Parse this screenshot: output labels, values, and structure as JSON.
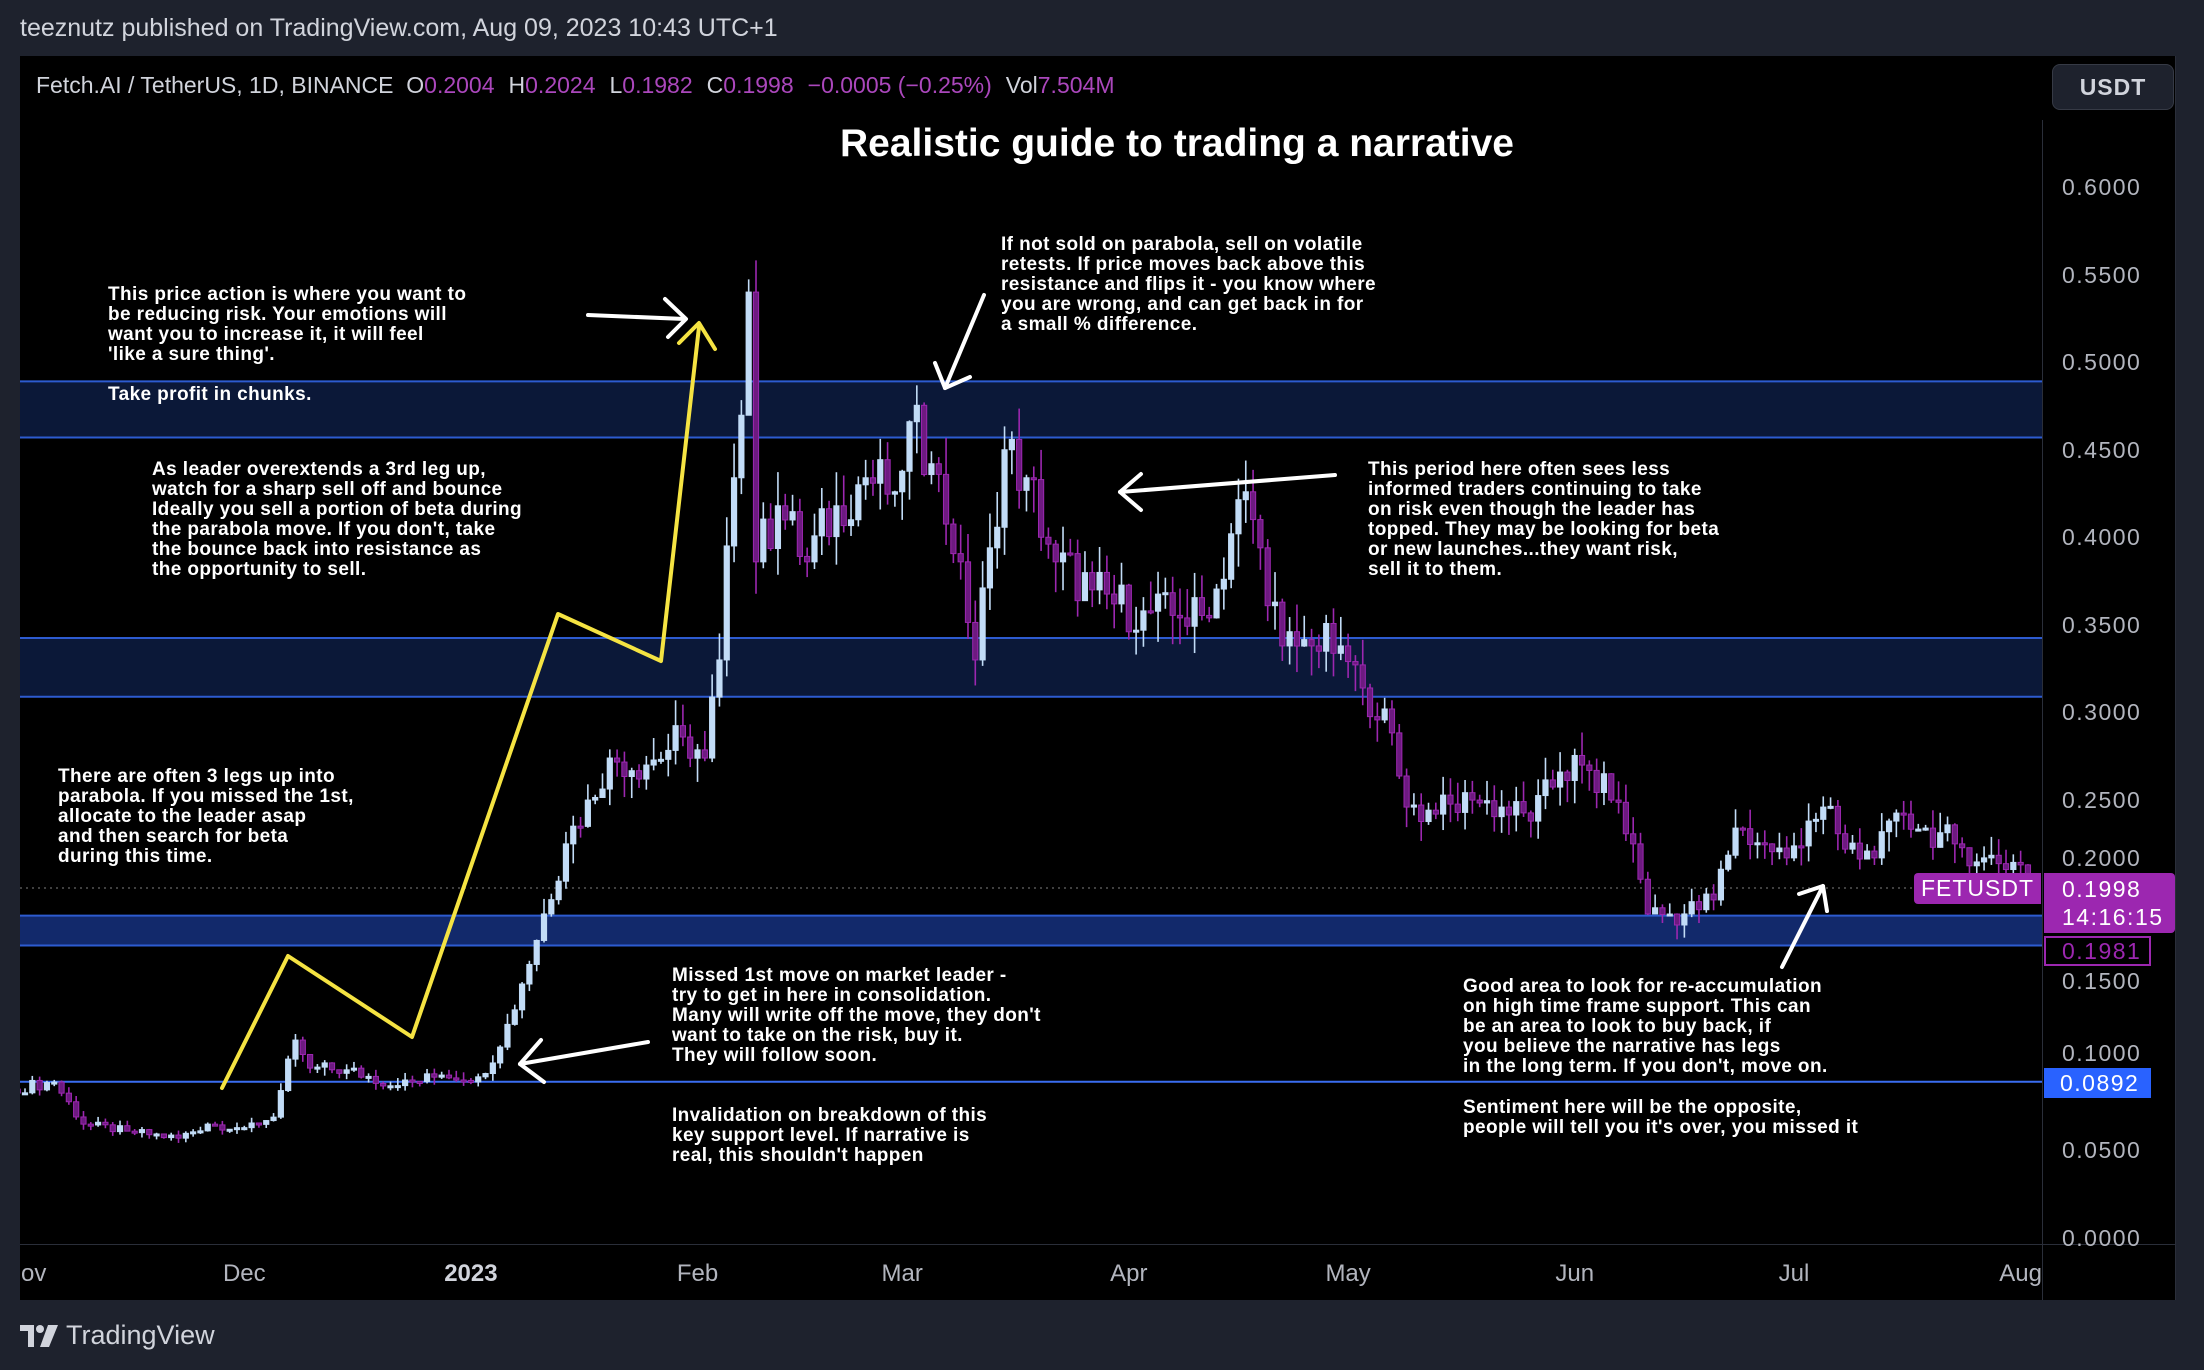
{
  "publish_line": "teeznutz published on TradingView.com, Aug 09, 2023 10:43 UTC+1",
  "legend": {
    "symbol": "Fetch.AI / TetherUS, 1D, BINANCE",
    "open_label": "O",
    "open": "0.2004",
    "high_label": "H",
    "high": "0.2024",
    "low_label": "L",
    "low": "0.1982",
    "close_label": "C",
    "close": "0.1998",
    "change": "−0.0005 (−0.25%)",
    "vol_label": "Vol",
    "vol": "7.504M"
  },
  "currency_button": "USDT",
  "title": "Realistic guide to trading a narrative",
  "annotations": {
    "reduce_risk": "This price action is where you want to\nbe reducing risk. Your emotions will\nwant you to increase it, it will feel\n'like a sure thing'.",
    "take_profit": "Take profit in chunks.",
    "overextends": "As leader overextends a 3rd leg up,\nwatch for a sharp sell off and bounce\nIdeally you sell a portion of beta during\nthe parabola move. If you don't, take\nthe bounce back into resistance as\nthe opportunity to sell.",
    "retests": "If not sold on parabola, sell on volatile\nretests. If price moves back above this\nresistance and flips it - you know where\nyou are wrong, and can get back in for\na small % difference.",
    "less_informed": "This period here often sees less\ninformed traders continuing to take\non risk even though the leader has\ntopped. They may be looking for beta\nor new launches...they want risk,\nsell it to them.",
    "three_legs": "There are often 3 legs up into\nparabola. If you missed the 1st,\nallocate to the leader asap\nand then search for beta\nduring this time.",
    "missed_first": "Missed 1st move on market leader -\ntry to get in here in consolidation.\nMany will write off the move, they don't\nwant to take on the risk, buy it.\nThey will follow soon.",
    "invalidation": "Invalidation on breakdown of this\nkey support level. If narrative is\nreal, this shouldn't happen",
    "reaccumulation": "Good area to look for re-accumulation\non high time frame support. This can\nbe an area to look to buy back, if\nyou believe the narrative has legs\nin the long term. If you don't, move on.",
    "sentiment": "Sentiment here will be the opposite,\npeople will tell you it's over, you missed it"
  },
  "price_markers": {
    "symbol_badge": "FETUSDT",
    "last_price": "0.1998",
    "countdown": "14:16:15",
    "low_marker": "0.1981",
    "support_marker": "0.0892"
  },
  "brand": "TradingView",
  "colors": {
    "up_candle": "#c2dcf7",
    "down_candle": "#9c27b0",
    "zone_fill": "#0b1838",
    "zone_border": "#2d5bd0",
    "support_line": "#3a6df0",
    "leg_path": "#f5e342",
    "arrow": "#ffffff",
    "accent_purple": "#9c27b0",
    "accent_blue": "#2962ff"
  },
  "chart_data": {
    "type": "candlestick",
    "interval": "1D",
    "ylim": [
      0,
      0.62
    ],
    "y_ticks": [
      "0.0000",
      "0.0500",
      "0.1000",
      "0.1500",
      "0.2000",
      "0.2500",
      "0.3000",
      "0.3500",
      "0.4000",
      "0.4500",
      "0.5000",
      "0.5500",
      "0.6000"
    ],
    "x_labels": [
      {
        "date": "2022-11-01",
        "label": "Nov",
        "bold": false
      },
      {
        "date": "2022-12-01",
        "label": "Dec",
        "bold": false
      },
      {
        "date": "2023-01-01",
        "label": "2023",
        "bold": true
      },
      {
        "date": "2023-02-01",
        "label": "Feb",
        "bold": false
      },
      {
        "date": "2023-03-01",
        "label": "Mar",
        "bold": false
      },
      {
        "date": "2023-04-01",
        "label": "Apr",
        "bold": false
      },
      {
        "date": "2023-05-01",
        "label": "May",
        "bold": false
      },
      {
        "date": "2023-06-01",
        "label": "Jun",
        "bold": false
      },
      {
        "date": "2023-07-01",
        "label": "Jul",
        "bold": false
      },
      {
        "date": "2023-08-01",
        "label": "Aug",
        "bold": false
      }
    ],
    "close_path": [
      [
        "2022-10-30",
        0.085
      ],
      [
        "2022-11-05",
        0.089
      ],
      [
        "2022-11-09",
        0.065
      ],
      [
        "2022-11-15",
        0.061
      ],
      [
        "2022-11-22",
        0.057
      ],
      [
        "2022-11-26",
        0.065
      ],
      [
        "2022-12-01",
        0.063
      ],
      [
        "2022-12-05",
        0.069
      ],
      [
        "2022-12-08",
        0.113
      ],
      [
        "2022-12-10",
        0.097
      ],
      [
        "2022-12-15",
        0.096
      ],
      [
        "2022-12-22",
        0.087
      ],
      [
        "2022-12-28",
        0.093
      ],
      [
        "2023-01-02",
        0.092
      ],
      [
        "2023-01-05",
        0.109
      ],
      [
        "2023-01-08",
        0.145
      ],
      [
        "2023-01-11",
        0.185
      ],
      [
        "2023-01-14",
        0.225
      ],
      [
        "2023-01-17",
        0.25
      ],
      [
        "2023-01-20",
        0.274
      ],
      [
        "2023-01-25",
        0.27
      ],
      [
        "2023-01-30",
        0.286
      ],
      [
        "2023-02-02",
        0.274
      ],
      [
        "2023-02-04",
        0.33
      ],
      [
        "2023-02-06",
        0.434
      ],
      [
        "2023-02-08",
        0.54
      ],
      [
        "2023-02-09",
        0.386
      ],
      [
        "2023-02-12",
        0.418
      ],
      [
        "2023-02-16",
        0.386
      ],
      [
        "2023-02-20",
        0.418
      ],
      [
        "2023-02-24",
        0.434
      ],
      [
        "2023-02-28",
        0.426
      ],
      [
        "2023-03-02",
        0.466
      ],
      [
        "2023-03-05",
        0.442
      ],
      [
        "2023-03-09",
        0.386
      ],
      [
        "2023-03-11",
        0.33
      ],
      [
        "2023-03-13",
        0.394
      ],
      [
        "2023-03-15",
        0.45
      ],
      [
        "2023-03-18",
        0.434
      ],
      [
        "2023-03-22",
        0.386
      ],
      [
        "2023-03-27",
        0.37
      ],
      [
        "2023-03-30",
        0.362
      ],
      [
        "2023-04-03",
        0.358
      ],
      [
        "2023-04-08",
        0.354
      ],
      [
        "2023-04-12",
        0.354
      ],
      [
        "2023-04-15",
        0.402
      ],
      [
        "2023-04-17",
        0.426
      ],
      [
        "2023-04-19",
        0.394
      ],
      [
        "2023-04-22",
        0.338
      ],
      [
        "2023-04-26",
        0.338
      ],
      [
        "2023-04-30",
        0.338
      ],
      [
        "2023-05-03",
        0.314
      ],
      [
        "2023-05-06",
        0.302
      ],
      [
        "2023-05-09",
        0.246
      ],
      [
        "2023-05-13",
        0.242
      ],
      [
        "2023-05-18",
        0.25
      ],
      [
        "2023-05-22",
        0.246
      ],
      [
        "2023-05-26",
        0.238
      ],
      [
        "2023-05-30",
        0.266
      ],
      [
        "2023-06-02",
        0.27
      ],
      [
        "2023-06-06",
        0.25
      ],
      [
        "2023-06-09",
        0.225
      ],
      [
        "2023-06-11",
        0.185
      ],
      [
        "2023-06-16",
        0.185
      ],
      [
        "2023-06-20",
        0.193
      ],
      [
        "2023-06-23",
        0.234
      ],
      [
        "2023-06-27",
        0.225
      ],
      [
        "2023-06-30",
        0.217
      ],
      [
        "2023-07-03",
        0.238
      ],
      [
        "2023-07-05",
        0.246
      ],
      [
        "2023-07-08",
        0.222
      ],
      [
        "2023-07-12",
        0.217
      ],
      [
        "2023-07-16",
        0.242
      ],
      [
        "2023-07-19",
        0.234
      ],
      [
        "2023-07-23",
        0.225
      ],
      [
        "2023-07-27",
        0.217
      ],
      [
        "2023-08-01",
        0.213
      ],
      [
        "2023-08-02",
        0.1998
      ]
    ],
    "zones": [
      {
        "name": "resistance",
        "from": 0.457,
        "to": 0.489
      },
      {
        "name": "mid-range",
        "from": 0.309,
        "to": 0.3425
      },
      {
        "name": "htf-support",
        "from": 0.167,
        "to": 0.184
      }
    ],
    "horizontal_lines": [
      {
        "name": "key-support",
        "value": 0.0892
      }
    ],
    "last_price_line": 0.1998
  }
}
